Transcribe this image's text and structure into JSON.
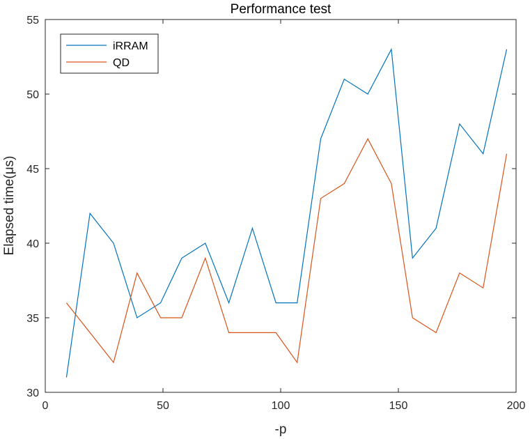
{
  "chart_data": {
    "type": "line",
    "title": "Performance test",
    "xlabel": "-p",
    "ylabel": "Elapsed time(μs)",
    "xlim": [
      0,
      200
    ],
    "ylim": [
      30,
      55
    ],
    "xticks": [
      "0",
      "50",
      "100",
      "150",
      "200"
    ],
    "yticks": [
      "30",
      "35",
      "40",
      "45",
      "50",
      "55"
    ],
    "grid": false,
    "legend_position": "top-left",
    "x": [
      9,
      19,
      29,
      39,
      49,
      58,
      68,
      78,
      88,
      98,
      107,
      117,
      127,
      137,
      147,
      156,
      166,
      176,
      186,
      196
    ],
    "series": [
      {
        "name": "iRRAM",
        "color": "#0072BD",
        "values": [
          31,
          42,
          40,
          35,
          36,
          39,
          40,
          36,
          41,
          36,
          36,
          47,
          51,
          50,
          53,
          39,
          41,
          48,
          46,
          53
        ]
      },
      {
        "name": "QD",
        "color": "#D95319",
        "values": [
          36,
          34,
          32,
          38,
          35,
          35,
          39,
          34,
          34,
          34,
          32,
          43,
          44,
          47,
          44,
          35,
          34,
          38,
          37,
          46
        ]
      }
    ]
  }
}
